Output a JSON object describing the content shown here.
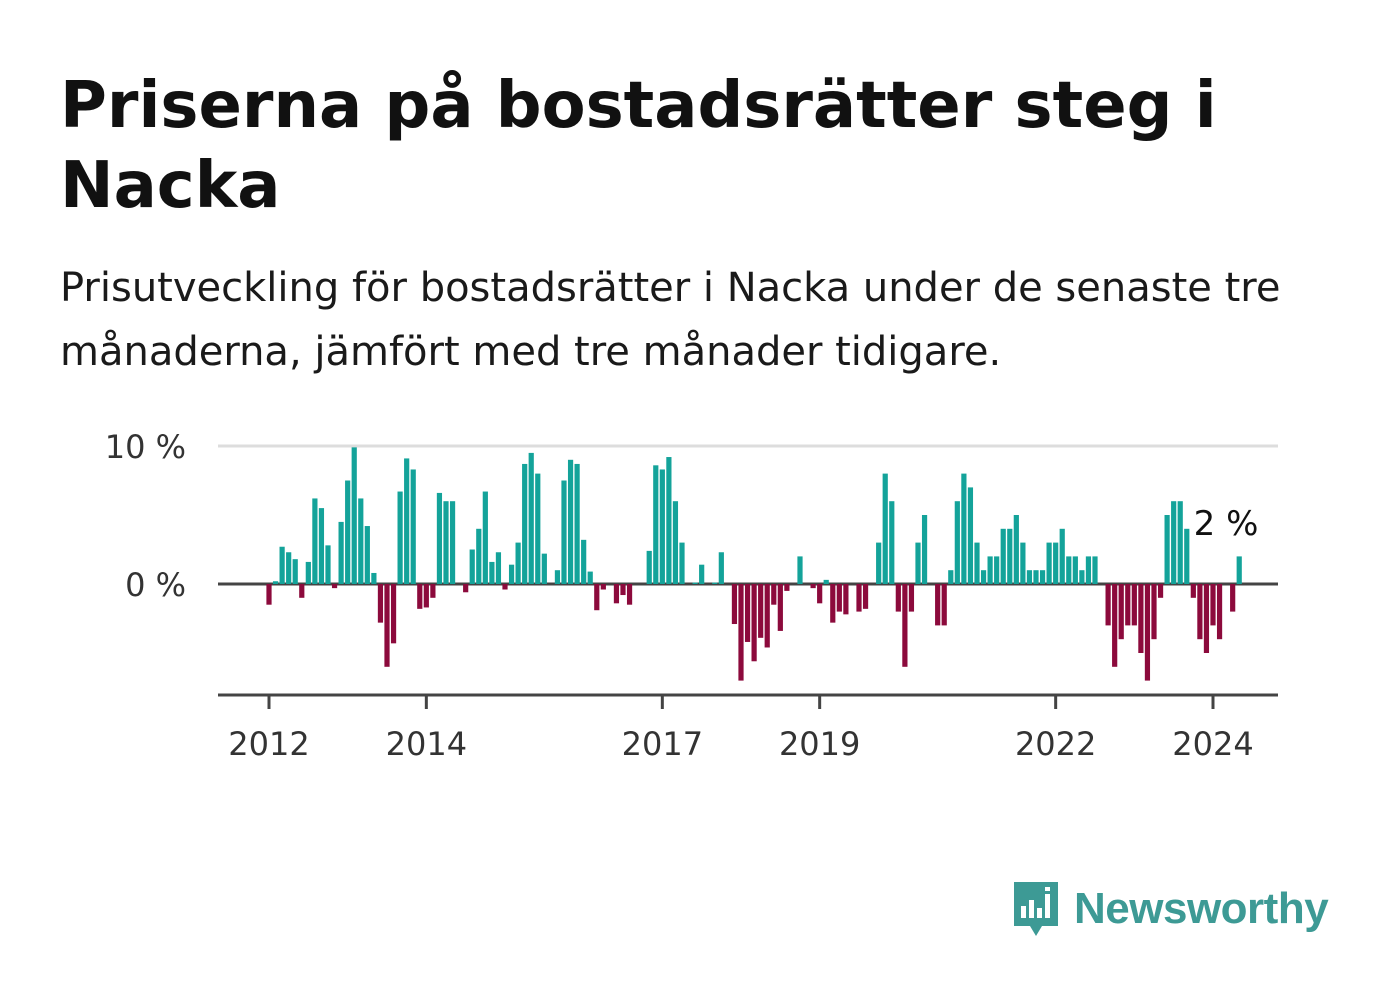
{
  "title": "Priserna på bostadsrätter steg i Nacka",
  "subtitle": "Prisutveckling för bostadsrätter i Nacka under de senaste tre månaderna, jämfört med tre månader tidigare.",
  "brand": {
    "name": "Newsworthy",
    "icon": "newsworthy-logo-icon",
    "color": "#3d9a95"
  },
  "chart_data": {
    "type": "bar",
    "x_start": "2012-01",
    "x_end": "2024-05",
    "y_tick_values": [
      0,
      10
    ],
    "y_tick_labels": [
      "0 %",
      "10 %"
    ],
    "ylim": [
      -8,
      10
    ],
    "x_ticks": [
      "2012",
      "2014",
      "2017",
      "2019",
      "2022",
      "2024"
    ],
    "grid": true,
    "colors": {
      "positive": "#14a39a",
      "negative": "#8c0a3c",
      "grid": "#dddddd",
      "axis": "#444444"
    },
    "annotation": {
      "text": "2 %"
    },
    "values": [
      -1.5,
      0.2,
      2.7,
      2.3,
      1.8,
      -1.0,
      1.6,
      6.2,
      5.5,
      2.8,
      -0.3,
      4.5,
      7.5,
      9.9,
      6.2,
      4.2,
      0.8,
      -2.8,
      -6.0,
      -4.3,
      6.7,
      9.1,
      8.3,
      -1.8,
      -1.7,
      -1.0,
      6.6,
      6.0,
      6.0,
      0.0,
      -0.6,
      2.5,
      4.0,
      6.7,
      1.6,
      2.3,
      -0.4,
      1.4,
      3.0,
      8.7,
      9.5,
      8.0,
      2.2,
      0.0,
      1.0,
      7.5,
      9.0,
      8.7,
      3.2,
      0.9,
      -1.9,
      -0.4,
      0.0,
      -1.4,
      -0.8,
      -1.5,
      0.0,
      0.0,
      2.4,
      8.6,
      8.3,
      9.2,
      6.0,
      3.0,
      0.0,
      0.1,
      1.4,
      0.0,
      0.1,
      2.3,
      0.0,
      -2.9,
      -7.0,
      -4.2,
      -5.6,
      -3.9,
      -4.6,
      -1.5,
      -3.4,
      -0.5,
      0.0,
      2.0,
      0.0,
      -0.3,
      -1.4,
      0.3,
      -2.8,
      -2.0,
      -2.2,
      0.0,
      -2.0,
      -1.8,
      0.0,
      3.0,
      8.0,
      6.0,
      -2.0,
      -6.0,
      -2.0,
      3.0,
      5.0,
      0.0,
      -3.0,
      -3.0,
      1.0,
      6.0,
      8.0,
      7.0,
      3.0,
      1.0,
      2.0,
      2.0,
      4.0,
      4.0,
      5.0,
      3.0,
      1.0,
      1.0,
      1.0,
      3.0,
      3.0,
      4.0,
      2.0,
      2.0,
      1.0,
      2.0,
      2.0,
      0.0,
      -3.0,
      -6.0,
      -4.0,
      -3.0,
      -3.0,
      -5.0,
      -7.0,
      -4.0,
      -1.0,
      5.0,
      6.0,
      6.0,
      4.0,
      -1.0,
      -4.0,
      -5.0,
      -3.0,
      -4.0,
      0.0,
      -2.0,
      2.0
    ]
  }
}
